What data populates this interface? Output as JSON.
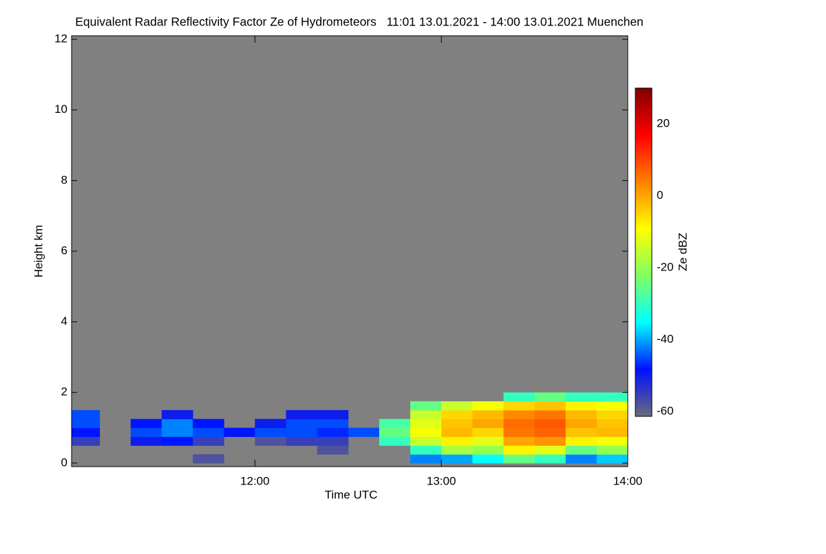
{
  "chart_data": {
    "type": "heatmap",
    "title": "Equivalent Radar Reflectivity Factor Ze of Hydrometeors   11:01 13.01.2021 - 14:00 13.01.2021 Muenchen",
    "x_label": "Time UTC",
    "y_label": "Height km",
    "colorbar_label": "Ze dBZ",
    "x": [
      11.0833,
      11.25,
      11.4167,
      11.5833,
      11.75,
      11.9167,
      12.0833,
      12.25,
      12.4167,
      12.5833,
      12.75,
      12.9167,
      13.0833,
      13.25,
      13.4167,
      13.5833,
      13.75,
      13.9167
    ],
    "y": [
      0.125,
      0.375,
      0.625,
      0.875,
      1.125,
      1.375,
      1.625,
      1.875
    ],
    "z": [
      [
        null,
        null,
        null,
        null,
        -58,
        null,
        null,
        null,
        null,
        null,
        null,
        -42,
        -40,
        -35,
        -25,
        -30,
        -42,
        -38
      ],
      [
        null,
        null,
        null,
        null,
        null,
        null,
        null,
        null,
        -58,
        null,
        null,
        -30,
        -18,
        -20,
        -8,
        -12,
        -25,
        -20
      ],
      [
        -55,
        null,
        -50,
        -48,
        -55,
        null,
        -58,
        -55,
        -55,
        null,
        -30,
        -15,
        -8,
        -12,
        0,
        2,
        -8,
        -10
      ],
      [
        -48,
        null,
        -45,
        -42,
        -45,
        -48,
        -45,
        -45,
        -47,
        -45,
        -25,
        -10,
        -2,
        -5,
        5,
        7,
        -3,
        -2
      ],
      [
        -45,
        null,
        -48,
        -42,
        -48,
        null,
        -50,
        -45,
        -45,
        null,
        -28,
        -12,
        -3,
        0,
        6,
        8,
        0,
        -3
      ],
      [
        -45,
        null,
        null,
        -50,
        null,
        null,
        null,
        -50,
        -50,
        null,
        null,
        -15,
        -5,
        -2,
        3,
        5,
        -2,
        -5
      ],
      [
        null,
        null,
        null,
        null,
        null,
        null,
        null,
        null,
        null,
        null,
        null,
        -25,
        -15,
        -10,
        -5,
        -3,
        -8,
        -10
      ],
      [
        null,
        null,
        null,
        null,
        null,
        null,
        null,
        null,
        null,
        null,
        null,
        null,
        null,
        null,
        -30,
        -25,
        -30,
        -30
      ]
    ],
    "xlim": [
      11.0167,
      14.0
    ],
    "ylim": [
      -0.1,
      12.1
    ],
    "xticks": [
      {
        "value": 12,
        "label": "12:00"
      },
      {
        "value": 13,
        "label": "13:00"
      },
      {
        "value": 14,
        "label": "14:00"
      }
    ],
    "yticks": [
      0,
      2,
      4,
      6,
      8,
      10,
      12
    ],
    "zlim": [
      -61.3,
      30
    ],
    "zticks": [
      -60,
      -40,
      -20,
      0,
      20
    ],
    "colorscale": [
      "#6a6a7a",
      "#0010ff",
      "#00ffff",
      "#80ff60",
      "#ffff00",
      "#ff8000",
      "#ff0000",
      "#800000"
    ],
    "background": "#808080"
  }
}
